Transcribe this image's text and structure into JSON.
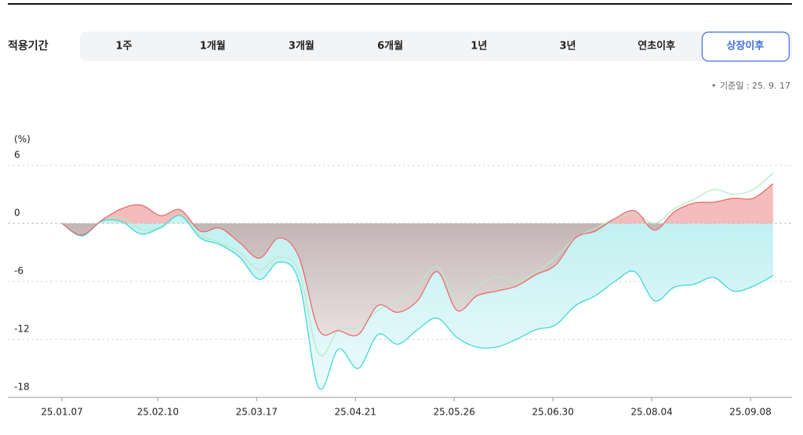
{
  "filter": {
    "label": "적용기간",
    "options": [
      "1주",
      "1개월",
      "3개월",
      "6개월",
      "1년",
      "3년",
      "연초이후",
      "상장이후"
    ],
    "selected": 7
  },
  "base_date": "기준일 : 25. 9. 17",
  "chart_data": {
    "type": "area-line",
    "y_label": "(%)",
    "x": [
      "25.01.07",
      "25.01.14",
      "25.01.21",
      "25.01.28",
      "25.02.04",
      "25.02.11",
      "25.02.18",
      "25.02.25",
      "25.03.04",
      "25.03.11",
      "25.03.18",
      "25.03.25",
      "25.04.01",
      "25.04.08",
      "25.04.15",
      "25.04.22",
      "25.04.29",
      "25.05.06",
      "25.05.13",
      "25.05.20",
      "25.05.27",
      "25.06.03",
      "25.06.10",
      "25.06.17",
      "25.06.24",
      "25.07.01",
      "25.07.08",
      "25.07.15",
      "25.07.22",
      "25.07.29",
      "25.08.05",
      "25.08.12",
      "25.08.19",
      "25.08.26",
      "25.09.02",
      "25.09.09",
      "25.09.16"
    ],
    "series": [
      {
        "color": "#e86d6d",
        "values": [
          0,
          -1.2,
          0.3,
          1.5,
          1.9,
          0.8,
          1.4,
          -0.8,
          -0.5,
          -2,
          -3.6,
          -1.5,
          -3.5,
          -11,
          -11.1,
          -11.5,
          -8.5,
          -9.2,
          -8,
          -5,
          -9,
          -7.5,
          -7,
          -6.5,
          -5.3,
          -4.3,
          -1.5,
          -0.8,
          0.5,
          1.3,
          -0.7,
          1.2,
          2.1,
          2.2,
          2.6,
          2.6,
          4.1
        ]
      },
      {
        "color": "#3fd8d8",
        "values": [
          0,
          -1.3,
          0.2,
          0.2,
          -1.1,
          -0.4,
          0.8,
          -1.5,
          -2.2,
          -3.5,
          -5.8,
          -4,
          -6,
          -17,
          -13,
          -15,
          -11.5,
          -12.5,
          -11,
          -9.8,
          -11.8,
          -12.8,
          -12.8,
          -12,
          -11,
          -10.5,
          -8.5,
          -7.5,
          -6,
          -5,
          -8,
          -6.6,
          -6.3,
          -5.6,
          -7,
          -6.5,
          -5.4
        ]
      },
      {
        "color": "#b8eac4",
        "values": [
          0,
          -1.2,
          0.2,
          0.6,
          -0.6,
          -0.5,
          0.8,
          -1.2,
          -2,
          -3,
          -4.8,
          -3.5,
          -5,
          -13.5,
          -11,
          -10.8,
          -9,
          -8,
          -6.5,
          -4.5,
          -8,
          -6.5,
          -5.5,
          -6,
          -5,
          -3.5,
          -1.5,
          -0.5,
          0.5,
          1,
          0,
          1.5,
          2.5,
          3.5,
          3,
          3.5,
          5.2
        ]
      }
    ],
    "ylim": [
      -18,
      6
    ],
    "yticks": [
      6,
      0,
      -6,
      -12,
      -18
    ],
    "xticks": [
      "25.01.07",
      "25.02.10",
      "25.03.17",
      "25.04.21",
      "25.05.26",
      "25.06.30",
      "25.08.04",
      "25.09.08"
    ],
    "grid": true
  }
}
